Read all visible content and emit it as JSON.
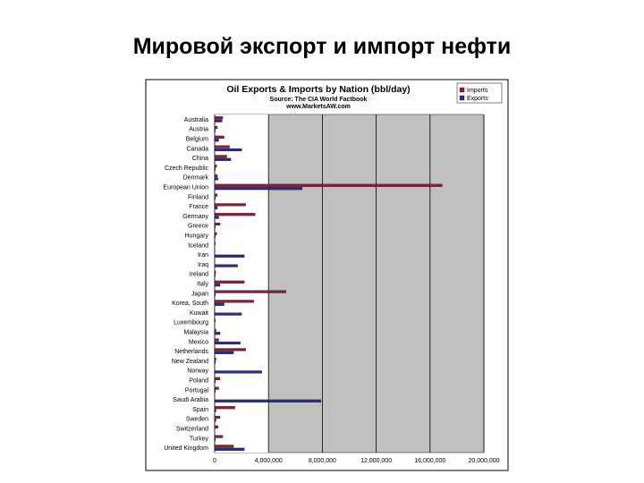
{
  "slide": {
    "title": "Мировой экспорт и импорт нефти"
  },
  "chart_data": {
    "type": "bar",
    "orientation": "horizontal",
    "title": "Oil Exports & Imports by Nation (bbl/day)",
    "subtitle": "Source: The CIA World Factbook",
    "source_url": "www.MarketsAW.com",
    "legend": {
      "placement": "top-right",
      "entries": [
        "Imports",
        "Exports"
      ]
    },
    "colors": {
      "Imports": "#8b1f3a",
      "Exports": "#2b2b8a",
      "plot_bg": "#c0c0c0",
      "frame": "#000000"
    },
    "grid": true,
    "xlim": [
      0,
      20000000
    ],
    "x_ticks": [
      "0",
      "4,000,000",
      "8,000,000",
      "12,000,000",
      "16,000,000",
      "20,000,000"
    ],
    "x_tick_values": [
      0,
      4000000,
      8000000,
      12000000,
      16000000,
      20000000
    ],
    "categories": [
      "Australia",
      "Austria",
      "Belgium",
      "Canada",
      "China",
      "Czech Republic",
      "Denmark",
      "European Union",
      "Finland",
      "France",
      "Germany",
      "Greece",
      "Hungary",
      "Iceland",
      "Iran",
      "Iraq",
      "Ireland",
      "Italy",
      "Japan",
      "Korea, South",
      "Kuwait",
      "Luxembourg",
      "Malaysia",
      "Mexico",
      "Netherlands",
      "New Zealand",
      "Norway",
      "Poland",
      "Portugal",
      "Saudi Arabia",
      "Spain",
      "Sweden",
      "Switzerland",
      "Turkey",
      "United Kingdom"
    ],
    "series": [
      {
        "name": "Imports",
        "values": [
          600000,
          200000,
          700000,
          1100000,
          900000,
          150000,
          200000,
          16900000,
          200000,
          2300000,
          3000000,
          400000,
          150000,
          20000,
          0,
          0,
          80000,
          2200000,
          5300000,
          2900000,
          0,
          50000,
          100000,
          300000,
          2300000,
          100000,
          0,
          400000,
          300000,
          0,
          1500000,
          400000,
          250000,
          600000,
          1400000
        ]
      },
      {
        "name": "Exports",
        "values": [
          550000,
          20000,
          300000,
          2000000,
          1200000,
          10000,
          250000,
          6500000,
          50000,
          200000,
          300000,
          50000,
          20000,
          0,
          2200000,
          1700000,
          10000,
          400000,
          50000,
          700000,
          2000000,
          0,
          400000,
          1900000,
          1400000,
          50000,
          3500000,
          20000,
          10000,
          7900000,
          100000,
          100000,
          0,
          20000,
          2200000
        ]
      }
    ]
  }
}
